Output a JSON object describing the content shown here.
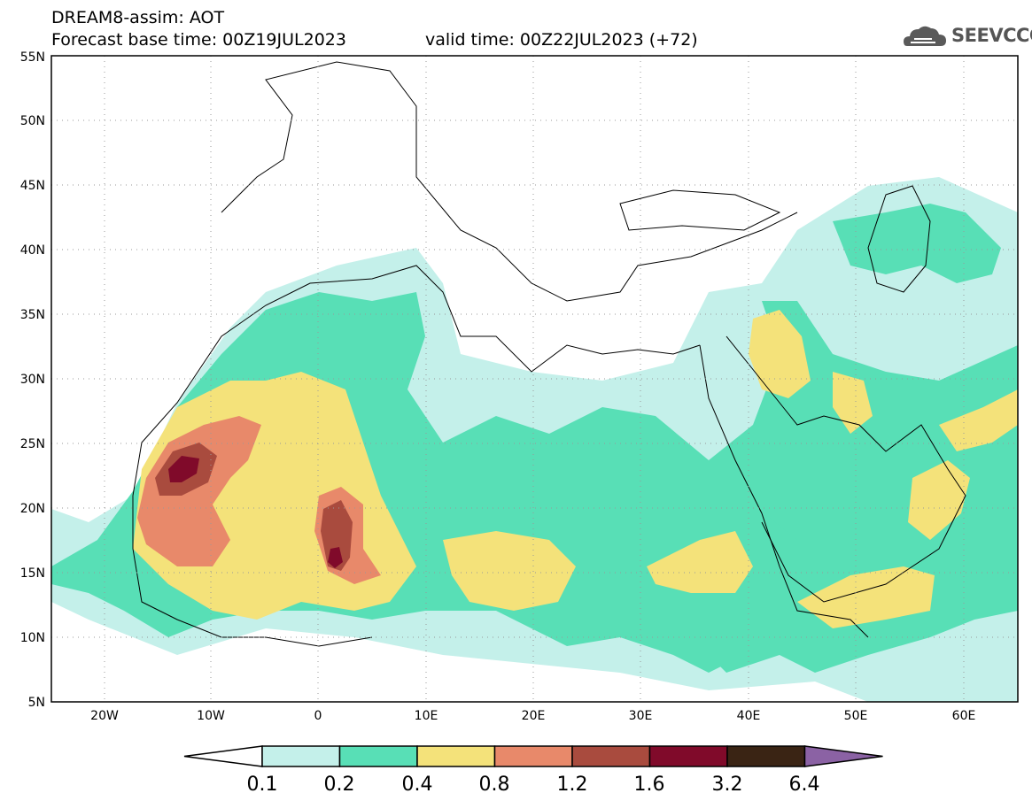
{
  "header": {
    "title": "DREAM8-assim: AOT",
    "base_time_label": "Forecast base time: 00Z19JUL2023",
    "valid_time_label": "valid time: 00Z22JUL2023 (+72)",
    "logo_text": "SEEVCCC",
    "logo_icon": "cloud-logo-icon"
  },
  "map": {
    "lon_range": [
      -25,
      65
    ],
    "lat_range": [
      5,
      55
    ],
    "lat_ticks": [
      "55N",
      "50N",
      "45N",
      "40N",
      "35N",
      "30N",
      "25N",
      "20N",
      "15N",
      "10N",
      "5N"
    ],
    "lon_ticks": [
      "20W",
      "10W",
      "0",
      "10E",
      "20E",
      "30E",
      "40E",
      "50E",
      "60E"
    ],
    "grid": "dotted"
  },
  "colorbar": {
    "labels": [
      "0.1",
      "0.2",
      "0.4",
      "0.8",
      "1.2",
      "1.6",
      "3.2",
      "6.4"
    ],
    "colors": [
      "#ffffff",
      "#c4f0ea",
      "#58dfb6",
      "#f4e27a",
      "#e8896a",
      "#a94b3e",
      "#800a2a",
      "#3a2414",
      "#8b62a4"
    ]
  }
}
